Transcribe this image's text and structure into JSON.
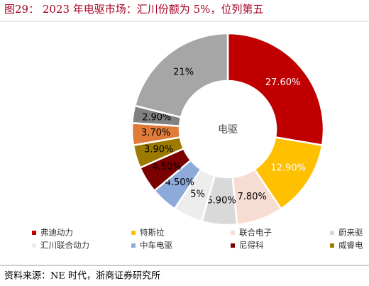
{
  "chart_data": {
    "type": "donut",
    "title": "图29：  2023 年电驱市场：汇川份额为 5%，位列第五",
    "center_label": "电驱",
    "categories": [
      "弗迪动力",
      "特斯拉",
      "联合电子",
      "蔚来驱",
      "汇川联合动力",
      "中车电驱",
      "尼得科",
      "威睿电",
      null,
      null,
      null
    ],
    "values": [
      27.6,
      12.9,
      7.8,
      5.9,
      5,
      4.5,
      4.5,
      3.9,
      3.7,
      2.9,
      21
    ],
    "value_labels": [
      "27.60%",
      "12.90%",
      "7.80%",
      "5.90%",
      "5%",
      "4.50%",
      "4.50%",
      "3.90%",
      "3.70%",
      "2.90%",
      "21%"
    ],
    "colors": [
      "#c00000",
      "#ffc000",
      "#f6dcd2",
      "#d9d9d9",
      "#ededed",
      "#8eaadb",
      "#7b0000",
      "#9c7a00",
      "#e07b39",
      "#808080",
      "#a6a6a6"
    ],
    "label_colors": [
      "#fff",
      "#fff",
      "#000",
      "#000",
      "#000",
      "#000",
      "#000",
      "#000",
      "#000",
      "#000",
      "#000"
    ],
    "source": "资料来源：NE 时代，浙商证券研究所"
  }
}
